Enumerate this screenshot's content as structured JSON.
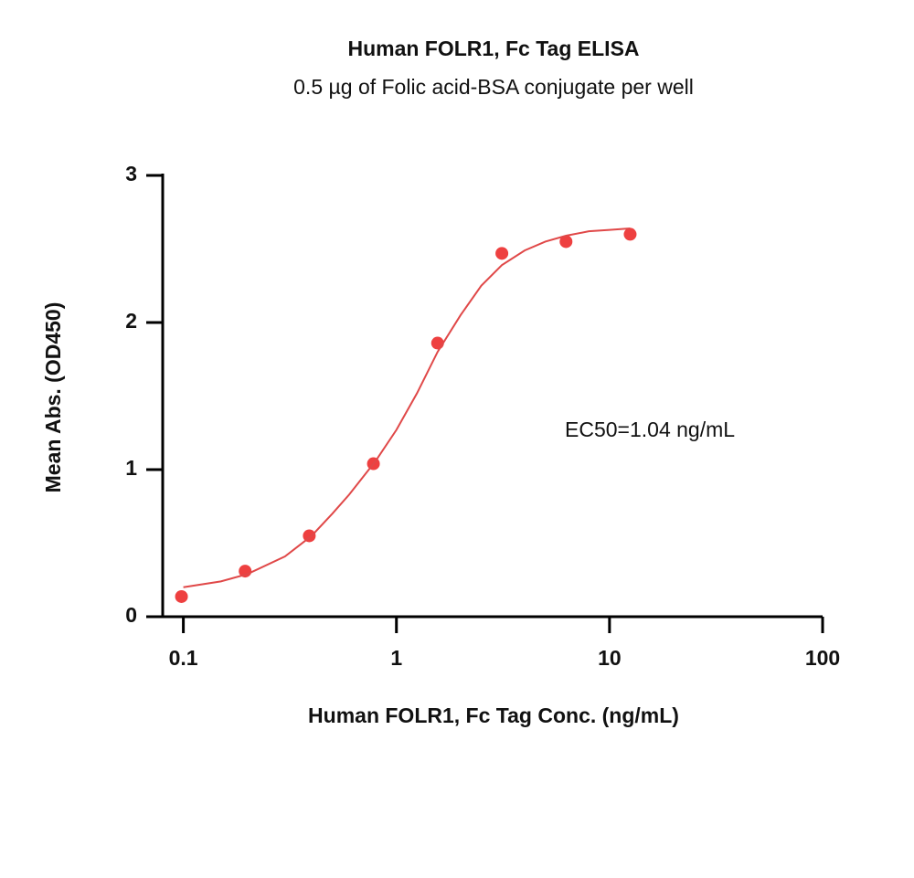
{
  "chart_data": {
    "type": "scatter",
    "title": "Human FOLR1, Fc Tag ELISA",
    "subtitle": "0.5 µg of Folic acid-BSA conjugate per well",
    "x_label": "Human FOLR1, Fc Tag Conc. (ng/mL)",
    "y_label": "Mean Abs. (OD450)",
    "annotation": "EC50=1.04 ng/mL",
    "x_scale": "log",
    "xlim": [
      0.08,
      100
    ],
    "xticks": [
      0.1,
      1,
      10,
      100
    ],
    "ylim": [
      0,
      3
    ],
    "yticks": [
      0,
      1,
      2,
      3
    ],
    "series": [
      {
        "type": "scatter",
        "color": "#ee4040",
        "x": [
          0.098,
          0.195,
          0.39,
          0.78,
          1.56,
          3.125,
          6.25,
          12.5
        ],
        "values": [
          0.137,
          0.31,
          0.55,
          1.04,
          1.86,
          2.47,
          2.55,
          2.6
        ]
      },
      {
        "type": "line",
        "color": "#e04848",
        "x": [
          0.1,
          0.15,
          0.2,
          0.3,
          0.4,
          0.5,
          0.6,
          0.8,
          1,
          1.25,
          1.56,
          2,
          2.5,
          3.125,
          4,
          5,
          6.25,
          8,
          10,
          12.5
        ],
        "values": [
          0.2,
          0.24,
          0.29,
          0.41,
          0.55,
          0.7,
          0.83,
          1.06,
          1.27,
          1.52,
          1.8,
          2.05,
          2.25,
          2.39,
          2.49,
          2.55,
          2.59,
          2.62,
          2.63,
          2.64
        ]
      }
    ]
  }
}
